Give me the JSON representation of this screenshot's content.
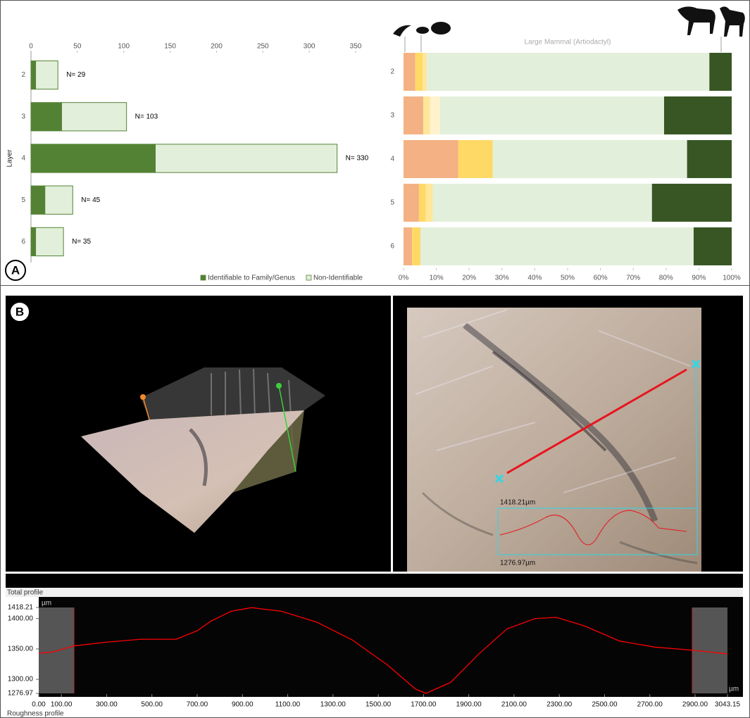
{
  "chart_data": [
    {
      "type": "bar",
      "orientation": "horizontal",
      "stacked": true,
      "categories": [
        "2",
        "3",
        "4",
        "5",
        "6"
      ],
      "series": [
        {
          "name": "Identifiable to Family/Genus",
          "color": "#548235",
          "values": [
            5,
            33,
            134,
            15,
            5
          ]
        },
        {
          "name": "Non-Identifiable",
          "color": "#e2efda",
          "values": [
            24,
            70,
            196,
            30,
            30
          ]
        }
      ],
      "total_labels": [
        "N= 29",
        "N= 103",
        "N= 330",
        "N= 45",
        "N= 35"
      ],
      "ylabel": "Layer",
      "xlim": [
        0,
        350
      ],
      "xticks": [
        0,
        50,
        100,
        150,
        200,
        250,
        300,
        350
      ],
      "x_axis": "top",
      "legend": "bottom",
      "grid": false
    },
    {
      "type": "bar",
      "orientation": "horizontal",
      "stacked": true,
      "annotation": "Large Mammal (Artiodactyl)",
      "categories": [
        "2",
        "3",
        "4",
        "5",
        "6"
      ],
      "series": [
        {
          "color": "#f4b183",
          "values": [
            3.6,
            6.0,
            16.7,
            4.7,
            2.6
          ]
        },
        {
          "color": "#ffd966",
          "values": [
            2.2,
            0,
            10.5,
            2.1,
            2.6
          ]
        },
        {
          "color": "#ffe699",
          "values": [
            1.3,
            2.1,
            0,
            2.1,
            0
          ]
        },
        {
          "color": "#fff2cc",
          "values": [
            0,
            3.0,
            0,
            0,
            0
          ]
        },
        {
          "color": "#e2efda",
          "values": [
            86.1,
            68.3,
            59.2,
            66.8,
            83.2
          ]
        },
        {
          "color": "#375623",
          "values": [
            6.8,
            20.6,
            13.6,
            24.3,
            11.6
          ]
        }
      ],
      "xlim": [
        0,
        100
      ],
      "xticks": [
        {
          "value": 0,
          "label": "0%"
        },
        {
          "value": 10,
          "label": "10%"
        },
        {
          "value": 20,
          "label": "20%"
        },
        {
          "value": 30,
          "label": "30%"
        },
        {
          "value": 40,
          "label": "40%"
        },
        {
          "value": 50,
          "label": "50%"
        },
        {
          "value": 60,
          "label": "60%"
        },
        {
          "value": 70,
          "label": "70%"
        },
        {
          "value": 80,
          "label": "80%"
        },
        {
          "value": 90,
          "label": "90%"
        },
        {
          "value": 100,
          "label": "100%"
        }
      ],
      "x_axis": "bottom",
      "grid": false
    },
    {
      "type": "line",
      "x": [
        0,
        62,
        155,
        296,
        451,
        607,
        700,
        762,
        850,
        940,
        1073,
        1229,
        1385,
        1540,
        1665,
        1711,
        1820,
        1945,
        2069,
        2194,
        2287,
        2411,
        2567,
        2723,
        2887,
        3043
      ],
      "series": [
        {
          "color": "#ff0000",
          "values": [
            1343,
            1345,
            1355,
            1361,
            1366,
            1366,
            1380,
            1396,
            1412,
            1418,
            1412,
            1394,
            1365,
            1324,
            1284,
            1277,
            1295,
            1342,
            1383,
            1400,
            1402,
            1388,
            1363,
            1353,
            1348,
            1342
          ]
        }
      ],
      "xlim": [
        0,
        3043.15
      ],
      "ylim": [
        1276.97,
        1418.21
      ],
      "xticks": [
        {
          "value": 0,
          "label": "0.00"
        },
        {
          "value": 100,
          "label": "100.00"
        },
        {
          "value": 300,
          "label": "300.00"
        },
        {
          "value": 500,
          "label": "500.00"
        },
        {
          "value": 700,
          "label": "700.00"
        },
        {
          "value": 900,
          "label": "900.00"
        },
        {
          "value": 1100,
          "label": "1100.00"
        },
        {
          "value": 1300,
          "label": "1300.00"
        },
        {
          "value": 1500,
          "label": "1500.00"
        },
        {
          "value": 1700,
          "label": "1700.00"
        },
        {
          "value": 1900,
          "label": "1900.00"
        },
        {
          "value": 2100,
          "label": "2100.00"
        },
        {
          "value": 2300,
          "label": "2300.00"
        },
        {
          "value": 2500,
          "label": "2500.00"
        },
        {
          "value": 2700,
          "label": "2700.00"
        },
        {
          "value": 2900,
          "label": "2900.00"
        },
        3043.15
      ],
      "yticks": [
        1276.97,
        {
          "value": 1300,
          "label": "1300.00"
        },
        {
          "value": 1350,
          "label": "1350.00"
        },
        {
          "value": 1400,
          "label": "1400.00"
        },
        1418.21
      ],
      "x_unit": "µm",
      "y_unit": "µm",
      "grid": false
    }
  ],
  "panel_labels": [
    "A",
    "B"
  ],
  "image_labels": [
    "1418.21µm",
    "1276.97µm"
  ],
  "profile_headers": [
    "Total profile",
    "Roughness profile"
  ]
}
